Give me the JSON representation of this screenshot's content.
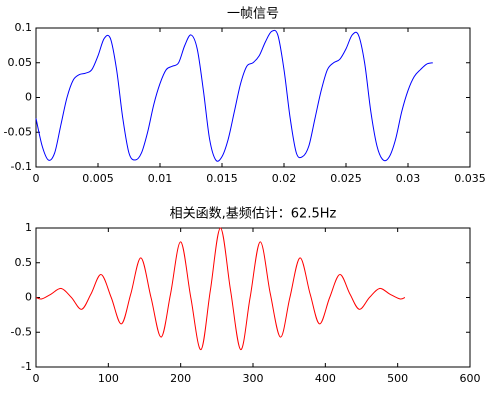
{
  "chart_data": [
    {
      "type": "line",
      "title": "一帧信号",
      "x": [
        0,
        0.0005,
        0.001,
        0.0015,
        0.002,
        0.0025,
        0.003,
        0.0035,
        0.004,
        0.0045,
        0.005,
        0.0055,
        0.006,
        0.0065,
        0.007,
        0.0075,
        0.008,
        0.0085,
        0.009,
        0.0095,
        0.01,
        0.0105,
        0.011,
        0.0115,
        0.012,
        0.0125,
        0.013,
        0.0135,
        0.014,
        0.0145,
        0.015,
        0.0155,
        0.016,
        0.0165,
        0.017,
        0.0175,
        0.018,
        0.0185,
        0.019,
        0.0195,
        0.02,
        0.0205,
        0.021,
        0.0215,
        0.022,
        0.0225,
        0.023,
        0.0235,
        0.024,
        0.0245,
        0.025,
        0.0255,
        0.026,
        0.0265,
        0.027,
        0.0275,
        0.028,
        0.0285,
        0.029,
        0.0295,
        0.03,
        0.0305,
        0.031,
        0.0315,
        0.032
      ],
      "series": [
        {
          "color": "#0000ff",
          "values": [
            -0.03,
            -0.07,
            -0.09,
            -0.08,
            -0.04,
            0.0,
            0.025,
            0.033,
            0.035,
            0.04,
            0.06,
            0.085,
            0.085,
            0.04,
            -0.03,
            -0.08,
            -0.09,
            -0.08,
            -0.05,
            -0.01,
            0.02,
            0.04,
            0.045,
            0.05,
            0.075,
            0.09,
            0.07,
            0.01,
            -0.06,
            -0.09,
            -0.085,
            -0.06,
            -0.02,
            0.02,
            0.045,
            0.05,
            0.06,
            0.08,
            0.095,
            0.09,
            0.04,
            -0.03,
            -0.08,
            -0.085,
            -0.07,
            -0.03,
            0.01,
            0.04,
            0.05,
            0.055,
            0.07,
            0.09,
            0.09,
            0.05,
            -0.02,
            -0.07,
            -0.09,
            -0.085,
            -0.06,
            -0.02,
            0.01,
            0.03,
            0.04,
            0.048,
            0.05
          ]
        }
      ],
      "xlim": [
        0,
        0.035
      ],
      "xticks": [
        0,
        0.005,
        0.01,
        0.015,
        0.02,
        0.025,
        0.03,
        0.035
      ],
      "ylim": [
        -0.1,
        0.1
      ],
      "yticks": [
        -0.1,
        -0.05,
        0,
        0.05,
        0.1
      ]
    },
    {
      "type": "line",
      "title": "相关函数,基频估计：62.5Hz",
      "x": [
        0,
        8,
        21,
        35,
        49,
        63,
        76,
        90,
        104,
        118,
        131,
        145,
        159,
        173,
        186,
        200,
        214,
        228,
        241,
        255,
        269,
        283,
        296,
        310,
        324,
        338,
        351,
        365,
        379,
        392,
        406,
        420,
        434,
        447,
        461,
        475,
        489,
        503,
        510
      ],
      "series": [
        {
          "color": "#ff0000",
          "values": [
            0,
            -0.02,
            0.05,
            0.13,
            0,
            -0.17,
            0.05,
            0.33,
            0,
            -0.38,
            0.05,
            0.57,
            0,
            -0.57,
            0.05,
            0.8,
            0,
            -0.75,
            0.1,
            1,
            0.1,
            -0.75,
            0,
            0.8,
            0.05,
            -0.57,
            0,
            0.57,
            0.05,
            -0.38,
            0,
            0.33,
            0.05,
            -0.17,
            0,
            0.13,
            0.05,
            -0.02,
            0
          ]
        }
      ],
      "xlim": [
        0,
        600
      ],
      "xticks": [
        0,
        100,
        200,
        300,
        400,
        500,
        600
      ],
      "ylim": [
        -1,
        1
      ],
      "yticks": [
        -1,
        -0.5,
        0,
        0.5,
        1
      ]
    }
  ]
}
